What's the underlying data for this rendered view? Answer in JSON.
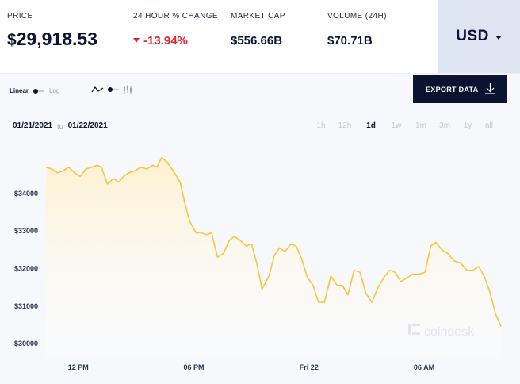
{
  "stats": {
    "price_label": "PRICE",
    "price_symbol": "$",
    "price_value": "29,918.53",
    "change_label": "24 HOUR % CHANGE",
    "change_value": "-13.94%",
    "market_cap_label": "MARKET CAP",
    "market_cap_value": "$556.66B",
    "volume_label": "VOLUME (24H)",
    "volume_value": "$70.71B"
  },
  "currency": {
    "selected": "USD",
    "icon": "chevron-down-icon"
  },
  "controls": {
    "scale_linear": "Linear",
    "scale_log": "Log",
    "line_chart_icon": "line-chart-icon",
    "candlestick_icon": "candlestick-icon",
    "export_label": "EXPORT DATA",
    "export_icon": "download-icon"
  },
  "range": {
    "from": "01/21/2021",
    "to_word": "to",
    "to": "01/22/2021"
  },
  "periods": [
    {
      "label": "1h",
      "active": false
    },
    {
      "label": "12h",
      "active": false
    },
    {
      "label": "1d",
      "active": true
    },
    {
      "label": "1w",
      "active": false
    },
    {
      "label": "1m",
      "active": false
    },
    {
      "label": "3m",
      "active": false
    },
    {
      "label": "1y",
      "active": false
    },
    {
      "label": "all",
      "active": false
    }
  ],
  "watermark": "coindesk",
  "colors": {
    "line": "#f5c542",
    "fill": "#fdf1d0",
    "down": "#e4252f",
    "brand_dark": "#0b1330",
    "currency_bg": "#dfe4f3"
  },
  "chart_data": {
    "type": "area",
    "ylim": [
      29600,
      35200
    ],
    "yticks": [
      {
        "value": 30000,
        "label": "$30000"
      },
      {
        "value": 31000,
        "label": "$31000"
      },
      {
        "value": 32000,
        "label": "$32000"
      },
      {
        "value": 33000,
        "label": "$33000"
      },
      {
        "value": 34000,
        "label": "$34000"
      }
    ],
    "xlim": [
      0,
      1
    ],
    "xticks": [
      {
        "x": 0.071,
        "label": "12 PM"
      },
      {
        "x": 0.325,
        "label": "06 PM"
      },
      {
        "x": 0.578,
        "label": "Fri 22"
      },
      {
        "x": 0.831,
        "label": "06 AM"
      }
    ],
    "series": [
      {
        "x": [
          0.0,
          0.013,
          0.025,
          0.038,
          0.05,
          0.063,
          0.075,
          0.088,
          0.1,
          0.113,
          0.122,
          0.135,
          0.148,
          0.16,
          0.17,
          0.182,
          0.195,
          0.208,
          0.222,
          0.234,
          0.244,
          0.254,
          0.265,
          0.28,
          0.295,
          0.306,
          0.316,
          0.33,
          0.342,
          0.352,
          0.364,
          0.377,
          0.39,
          0.403,
          0.414,
          0.427,
          0.44,
          0.452,
          0.463,
          0.475,
          0.49,
          0.502,
          0.513,
          0.525,
          0.538,
          0.55,
          0.562,
          0.575,
          0.587,
          0.599,
          0.612,
          0.626,
          0.64,
          0.651,
          0.664,
          0.677,
          0.69,
          0.703,
          0.716,
          0.728,
          0.742,
          0.755,
          0.767,
          0.78,
          0.793,
          0.806,
          0.82,
          0.833,
          0.846,
          0.857,
          0.87,
          0.883,
          0.897,
          0.911,
          0.925,
          0.938,
          0.951,
          0.963,
          0.975,
          0.988,
          1.0
        ],
        "y": [
          34700,
          34650,
          34550,
          34600,
          34700,
          34550,
          34450,
          34650,
          34700,
          34750,
          34700,
          34250,
          34400,
          34300,
          34450,
          34550,
          34600,
          34700,
          34650,
          34750,
          34700,
          34950,
          34850,
          34600,
          34300,
          33700,
          33250,
          32950,
          32950,
          32900,
          32950,
          32300,
          32400,
          32750,
          32850,
          32750,
          32600,
          32650,
          32150,
          31450,
          31800,
          32350,
          32550,
          32450,
          32650,
          32600,
          32250,
          31750,
          31550,
          31100,
          31100,
          31800,
          31550,
          31550,
          31300,
          31950,
          31900,
          31350,
          31100,
          31450,
          31750,
          31950,
          31900,
          31650,
          31750,
          31850,
          31850,
          31900,
          32600,
          32700,
          32500,
          32400,
          32200,
          32150,
          31950,
          31950,
          32050,
          31800,
          31400,
          30800,
          30450
        ]
      }
    ]
  }
}
